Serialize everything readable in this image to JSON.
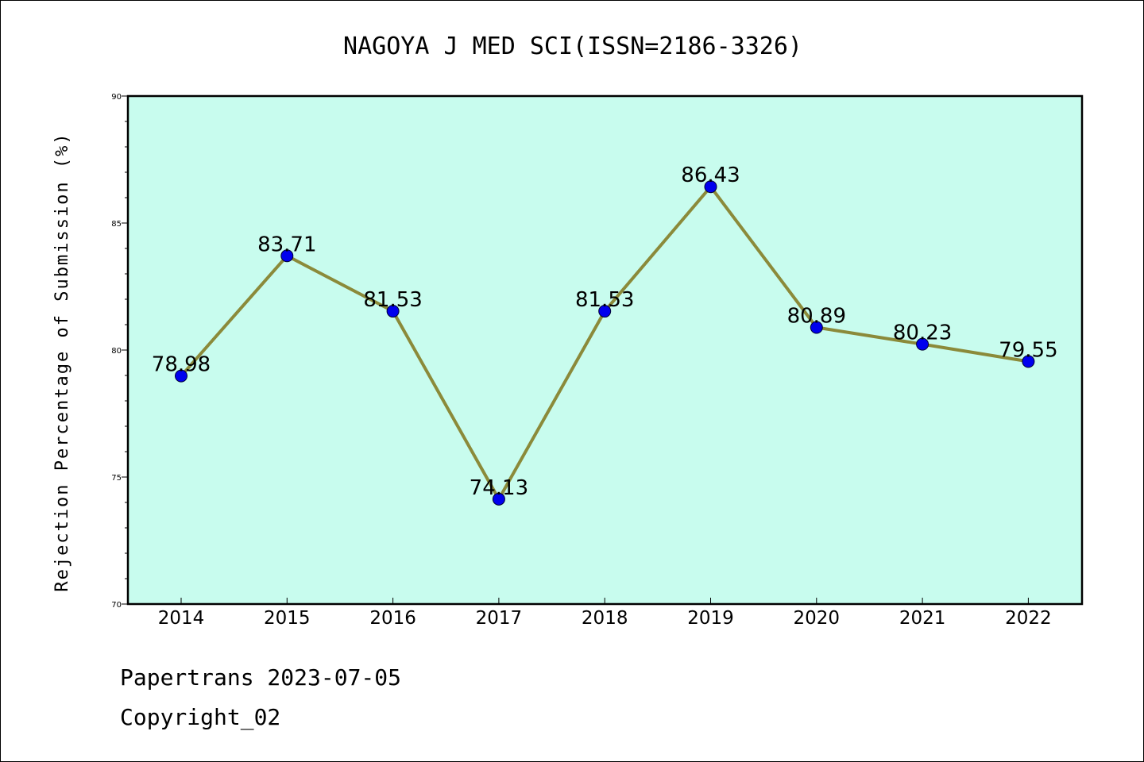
{
  "chart_data": {
    "type": "line",
    "title": "NAGOYA J MED SCI(ISSN=2186-3326)",
    "xlabel": "",
    "ylabel": "Rejection Percentage of Submission (%)",
    "categories": [
      "2014",
      "2015",
      "2016",
      "2017",
      "2018",
      "2019",
      "2020",
      "2021",
      "2022"
    ],
    "values": [
      78.98,
      83.71,
      81.53,
      74.13,
      81.53,
      86.43,
      80.89,
      80.23,
      79.55
    ],
    "data_labels": [
      "78.98",
      "83.71",
      "81.53",
      "74.13",
      "81.53",
      "86.43",
      "80.89",
      "80.23",
      "79.55"
    ],
    "ylim": [
      70,
      90
    ],
    "yticks": [
      70,
      75,
      80,
      85,
      90
    ],
    "grid": false,
    "plot_background": "#c8fcee",
    "line_color": "#8b8a3a",
    "marker_color": "#0000ee"
  },
  "footer": {
    "source": "Papertrans 2023-07-05",
    "copyright": "Copyright_02"
  }
}
